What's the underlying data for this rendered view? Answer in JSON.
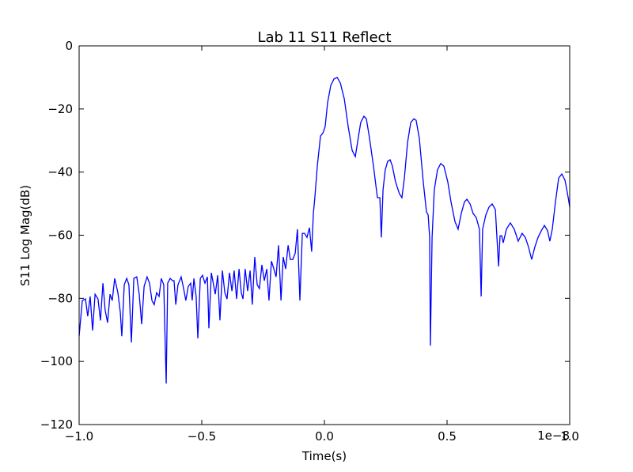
{
  "chart_data": {
    "type": "line",
    "title": "Lab 11 S11 Reflect",
    "xlabel": "Time(s)",
    "ylabel": "S11 Log Mag(dB)",
    "x_offset_label": "1e−8",
    "xlim": [
      -1,
      1
    ],
    "ylim": [
      -120,
      0
    ],
    "xticks": [
      {
        "value": -1,
        "label": "−1.0"
      },
      {
        "value": -0.5,
        "label": "−0.5"
      },
      {
        "value": 0,
        "label": "0.0"
      },
      {
        "value": 0.5,
        "label": "0.5"
      },
      {
        "value": 1,
        "label": "1.0"
      }
    ],
    "yticks": [
      0,
      {
        "value": -20,
        "label": "−20"
      },
      {
        "value": -40,
        "label": "−40"
      },
      {
        "value": -60,
        "label": "−60"
      },
      {
        "value": -80,
        "label": "−80"
      },
      {
        "value": -100,
        "label": "−100"
      },
      {
        "value": -120,
        "label": "−120"
      }
    ],
    "x": [
      -1.0,
      -0.987,
      -0.974,
      -0.965,
      -0.955,
      -0.945,
      -0.935,
      -0.923,
      -0.913,
      -0.903,
      -0.894,
      -0.884,
      -0.874,
      -0.865,
      -0.855,
      -0.842,
      -0.832,
      -0.826,
      -0.816,
      -0.806,
      -0.797,
      -0.787,
      -0.777,
      -0.765,
      -0.755,
      -0.745,
      -0.735,
      -0.723,
      -0.713,
      -0.703,
      -0.694,
      -0.684,
      -0.674,
      -0.665,
      -0.655,
      -0.645,
      -0.639,
      -0.629,
      -0.619,
      -0.613,
      -0.606,
      -0.597,
      -0.584,
      -0.574,
      -0.565,
      -0.555,
      -0.545,
      -0.539,
      -0.532,
      -0.523,
      -0.516,
      -0.506,
      -0.497,
      -0.487,
      -0.477,
      -0.471,
      -0.461,
      -0.452,
      -0.445,
      -0.435,
      -0.426,
      -0.416,
      -0.406,
      -0.397,
      -0.387,
      -0.377,
      -0.368,
      -0.358,
      -0.348,
      -0.339,
      -0.332,
      -0.323,
      -0.313,
      -0.303,
      -0.294,
      -0.284,
      -0.274,
      -0.265,
      -0.255,
      -0.245,
      -0.235,
      -0.226,
      -0.216,
      -0.206,
      -0.197,
      -0.187,
      -0.177,
      -0.168,
      -0.158,
      -0.148,
      -0.139,
      -0.129,
      -0.119,
      -0.11,
      -0.1,
      -0.09,
      -0.081,
      -0.071,
      -0.061,
      -0.052,
      -0.045,
      -0.039,
      -0.029,
      -0.016,
      -0.006,
      0.003,
      0.013,
      0.026,
      0.039,
      0.052,
      0.065,
      0.081,
      0.097,
      0.113,
      0.126,
      0.135,
      0.148,
      0.161,
      0.171,
      0.184,
      0.2,
      0.216,
      0.226,
      0.232,
      0.239,
      0.248,
      0.258,
      0.268,
      0.277,
      0.29,
      0.306,
      0.316,
      0.326,
      0.339,
      0.352,
      0.365,
      0.374,
      0.387,
      0.403,
      0.416,
      0.423,
      0.429,
      0.432,
      0.439,
      0.448,
      0.461,
      0.474,
      0.487,
      0.503,
      0.516,
      0.532,
      0.545,
      0.558,
      0.571,
      0.581,
      0.594,
      0.606,
      0.619,
      0.632,
      0.639,
      0.645,
      0.658,
      0.671,
      0.684,
      0.697,
      0.703,
      0.71,
      0.716,
      0.723,
      0.729,
      0.742,
      0.758,
      0.774,
      0.79,
      0.806,
      0.819,
      0.832,
      0.845,
      0.858,
      0.871,
      0.884,
      0.897,
      0.91,
      0.919,
      0.929,
      0.942,
      0.955,
      0.968,
      0.981,
      0.994,
      1.0
    ],
    "series": [
      {
        "color": "#0000ff",
        "values": [
          -92,
          -80.7,
          -80.2,
          -85.7,
          -79.4,
          -90.2,
          -78.7,
          -80.2,
          -87,
          -75.2,
          -83.7,
          -87.7,
          -78.7,
          -80.7,
          -73.7,
          -78.2,
          -84.5,
          -92,
          -75.7,
          -73.7,
          -75.7,
          -94,
          -73.7,
          -73.2,
          -78.7,
          -88.2,
          -76.2,
          -73.2,
          -75.2,
          -80.7,
          -82,
          -78.2,
          -79.4,
          -73.7,
          -75.7,
          -107,
          -75.2,
          -73.7,
          -74.4,
          -74.4,
          -82,
          -75.7,
          -73.2,
          -76.9,
          -80.7,
          -76.2,
          -75.2,
          -80.7,
          -73.7,
          -79.4,
          -92.7,
          -73.7,
          -72.7,
          -75.2,
          -73.2,
          -89.5,
          -71.9,
          -75.7,
          -78.7,
          -72.7,
          -87,
          -71.2,
          -78.2,
          -80.2,
          -71.9,
          -77.7,
          -71.2,
          -80.2,
          -70.7,
          -78.2,
          -80.2,
          -70.7,
          -77.7,
          -71.2,
          -82,
          -66.9,
          -75.7,
          -76.9,
          -69.4,
          -74.4,
          -70.7,
          -80.7,
          -68.2,
          -70.7,
          -73.2,
          -63.2,
          -80.7,
          -66.9,
          -70.7,
          -63.2,
          -67.7,
          -67.7,
          -65.7,
          -58.1,
          -80.7,
          -59.4,
          -59.4,
          -60.7,
          -57.6,
          -65.2,
          -53.1,
          -48.1,
          -38.1,
          -28.6,
          -27.6,
          -25.6,
          -18,
          -12.5,
          -10.5,
          -10,
          -11.8,
          -16.8,
          -25.6,
          -33.1,
          -35.1,
          -30.6,
          -24.3,
          -22.3,
          -23.1,
          -29.3,
          -38.1,
          -48.1,
          -48.1,
          -60.7,
          -45.6,
          -39.3,
          -36.6,
          -36.1,
          -38.1,
          -43.1,
          -46.9,
          -48.1,
          -41.9,
          -30.6,
          -24.3,
          -23.1,
          -23.6,
          -29.3,
          -43.1,
          -52.6,
          -53.6,
          -60.7,
          -95,
          -60.7,
          -45.6,
          -39.3,
          -37.3,
          -38.1,
          -43.1,
          -49.4,
          -55.6,
          -58.1,
          -53.1,
          -49.4,
          -48.6,
          -50.1,
          -53.1,
          -54.4,
          -58.1,
          -79.4,
          -58.1,
          -53.6,
          -51.1,
          -50.1,
          -51.9,
          -60.2,
          -69.9,
          -60.2,
          -60.2,
          -62.4,
          -58.1,
          -56.1,
          -58.1,
          -61.9,
          -59.4,
          -60.7,
          -63.7,
          -67.7,
          -63.7,
          -60.7,
          -58.6,
          -56.9,
          -58.6,
          -61.9,
          -58.1,
          -49.4,
          -41.9,
          -40.6,
          -42.6,
          -48.1,
          -51.1
        ]
      }
    ]
  }
}
